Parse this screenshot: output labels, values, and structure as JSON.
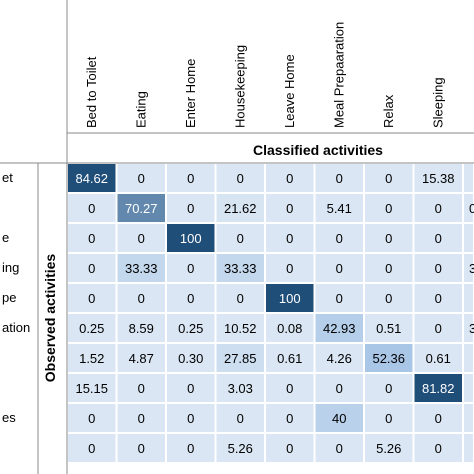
{
  "chart_data": {
    "type": "heatmap",
    "xlabel": "Classified activities",
    "ylabel": "Observed activities",
    "column_labels": [
      "Bed to Toilet",
      "Eating",
      "Enter Home",
      "Housekeeping",
      "Leave Home",
      "Meal Prepaaration",
      "Relax",
      "Sleeping"
    ],
    "row_labels_visible": [
      "et",
      "",
      "e",
      "ing",
      "pe",
      "ation",
      "",
      "",
      "es",
      ""
    ],
    "cells": [
      [
        "84.62",
        "0",
        "0",
        "0",
        "0",
        "0",
        "0",
        "15.38"
      ],
      [
        "0",
        "70.27",
        "0",
        "21.62",
        "0",
        "5.41",
        "0",
        "0"
      ],
      [
        "0",
        "0",
        "100",
        "0",
        "0",
        "0",
        "0",
        "0"
      ],
      [
        "0",
        "33.33",
        "0",
        "33.33",
        "0",
        "0",
        "0",
        "0"
      ],
      [
        "0",
        "0",
        "0",
        "0",
        "100",
        "0",
        "0",
        "0"
      ],
      [
        "0.25",
        "8.59",
        "0.25",
        "10.52",
        "0.08",
        "42.93",
        "0.51",
        "0"
      ],
      [
        "1.52",
        "4.87",
        "0.30",
        "27.85",
        "0.61",
        "4.26",
        "52.36",
        "0.61"
      ],
      [
        "15.15",
        "0",
        "0",
        "3.03",
        "0",
        "0",
        "0",
        "81.82"
      ],
      [
        "0",
        "0",
        "0",
        "0",
        "0",
        "40",
        "0",
        "0"
      ],
      [
        "0",
        "0",
        "0",
        "5.26",
        "0",
        "0",
        "5.26",
        "0"
      ]
    ],
    "cut_column_values": [
      "",
      "0",
      "",
      "3",
      "",
      "3",
      "",
      "",
      "",
      ""
    ],
    "value_range": [
      0,
      100
    ],
    "colors": {
      "low": "#dae6f3",
      "mid": "#a9c6e6",
      "high": "#1f4e79",
      "text_light": "#ffffff",
      "text_dark": "#000000"
    }
  }
}
